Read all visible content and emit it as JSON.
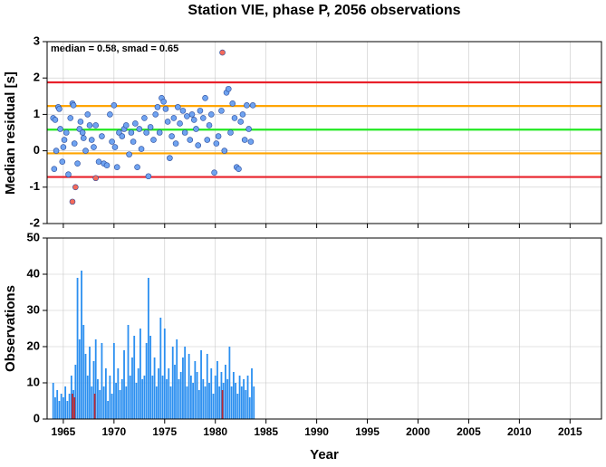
{
  "chart_data": [
    {
      "type": "scatter",
      "title": "Station VIE, phase P, 2056 observations",
      "ylabel": "Median residual [s]",
      "annotation": "median = 0.58, smad = 0.65",
      "xlim": [
        1963.4,
        2018.1
      ],
      "ylim": [
        -2,
        3
      ],
      "yticks": [
        -2,
        -1,
        0,
        1,
        2,
        3
      ],
      "xticks": [
        1965,
        1970,
        1975,
        1980,
        1985,
        1990,
        1995,
        2000,
        2005,
        2010,
        2015
      ],
      "grid": true,
      "hlines": [
        {
          "value": 1.88,
          "color": "#e8202a"
        },
        {
          "value": -0.72,
          "color": "#e8202a"
        },
        {
          "value": 1.23,
          "color": "#ffa500"
        },
        {
          "value": -0.07,
          "color": "#ffa500"
        },
        {
          "value": 0.58,
          "color": "#22e822"
        }
      ],
      "series": [
        {
          "color": "#6fa3f0",
          "x": [
            1964.0,
            1964.2,
            1964.1,
            1964.3,
            1964.5,
            1964.6,
            1964.7,
            1964.9,
            1965.0,
            1965.1,
            1965.3,
            1965.5,
            1965.7,
            1965.9,
            1966.0,
            1966.1,
            1966.4,
            1966.6,
            1966.7,
            1966.9,
            1967.0,
            1967.2,
            1967.4,
            1967.6,
            1967.8,
            1968.0,
            1968.2,
            1968.5,
            1968.8,
            1969.0,
            1969.3,
            1969.6,
            1969.8,
            1970.0,
            1970.1,
            1970.3,
            1970.5,
            1970.8,
            1971.0,
            1971.2,
            1971.5,
            1971.7,
            1971.9,
            1972.1,
            1972.3,
            1972.5,
            1972.7,
            1973.0,
            1973.2,
            1973.4,
            1973.6,
            1973.9,
            1974.1,
            1974.3,
            1974.5,
            1974.7,
            1974.9,
            1975.1,
            1975.3,
            1975.5,
            1975.7,
            1975.9,
            1976.1,
            1976.3,
            1976.5,
            1976.8,
            1977.0,
            1977.2,
            1977.5,
            1977.7,
            1977.9,
            1978.1,
            1978.3,
            1978.5,
            1978.8,
            1979.0,
            1979.2,
            1979.4,
            1979.6,
            1979.9,
            1980.1,
            1980.3,
            1980.6,
            1980.9,
            1981.1,
            1981.3,
            1981.5,
            1981.7,
            1981.9,
            1982.1,
            1982.3,
            1982.5,
            1982.7,
            1982.9,
            1983.1,
            1983.3,
            1983.5,
            1983.7
          ],
          "values": [
            0.9,
            0.85,
            -0.5,
            0.0,
            1.2,
            1.15,
            0.6,
            -0.3,
            0.1,
            0.3,
            0.5,
            -0.65,
            0.9,
            1.3,
            1.25,
            0.2,
            -0.35,
            0.6,
            0.8,
            0.5,
            0.35,
            0.0,
            1.0,
            0.7,
            0.3,
            0.1,
            0.7,
            -0.3,
            0.4,
            -0.35,
            -0.4,
            1.0,
            0.25,
            1.25,
            0.1,
            -0.45,
            0.5,
            0.4,
            0.6,
            0.7,
            -0.1,
            0.5,
            0.25,
            0.75,
            -0.45,
            0.6,
            0.05,
            0.9,
            0.5,
            -0.7,
            0.65,
            0.3,
            1.0,
            1.2,
            0.5,
            1.45,
            1.35,
            1.15,
            0.8,
            -0.2,
            0.4,
            0.9,
            0.2,
            1.2,
            0.75,
            1.1,
            0.5,
            0.95,
            0.3,
            1.0,
            0.85,
            0.6,
            0.15,
            1.1,
            0.9,
            1.45,
            0.3,
            0.7,
            1.0,
            -0.6,
            0.2,
            0.4,
            1.1,
            0.0,
            1.6,
            1.7,
            0.5,
            1.3,
            0.9,
            -0.45,
            -0.5,
            0.8,
            1.0,
            0.3,
            1.25,
            0.6,
            0.25,
            1.25
          ]
        },
        {
          "color": "#f46a5a",
          "x": [
            1965.9,
            1966.2,
            1968.2,
            1980.7
          ],
          "values": [
            -1.4,
            -1.0,
            -0.75,
            2.7
          ]
        }
      ]
    },
    {
      "type": "bar",
      "ylabel": "Observations",
      "xlabel": "Year",
      "xlim": [
        1963.4,
        2018.1
      ],
      "ylim": [
        0,
        50
      ],
      "yticks": [
        0,
        10,
        20,
        30,
        40,
        50
      ],
      "xticks": [
        1965,
        1970,
        1975,
        1980,
        1985,
        1990,
        1995,
        2000,
        2005,
        2010,
        2015
      ],
      "grid": true,
      "series": [
        {
          "color": "#2b8ff0",
          "x": [
            1964.0,
            1964.2,
            1964.4,
            1964.6,
            1964.8,
            1965.0,
            1965.2,
            1965.4,
            1965.6,
            1965.8,
            1966.0,
            1966.2,
            1966.4,
            1966.6,
            1966.8,
            1967.0,
            1967.2,
            1967.4,
            1967.6,
            1967.8,
            1968.0,
            1968.2,
            1968.4,
            1968.6,
            1968.8,
            1969.0,
            1969.2,
            1969.4,
            1969.6,
            1969.8,
            1970.0,
            1970.2,
            1970.4,
            1970.6,
            1970.8,
            1971.0,
            1971.2,
            1971.4,
            1971.6,
            1971.8,
            1972.0,
            1972.2,
            1972.4,
            1972.6,
            1972.8,
            1973.0,
            1973.2,
            1973.4,
            1973.6,
            1973.8,
            1974.0,
            1974.2,
            1974.4,
            1974.6,
            1974.8,
            1975.0,
            1975.2,
            1975.4,
            1975.6,
            1975.8,
            1976.0,
            1976.2,
            1976.4,
            1976.6,
            1976.8,
            1977.0,
            1977.2,
            1977.4,
            1977.6,
            1977.8,
            1978.0,
            1978.2,
            1978.4,
            1978.6,
            1978.8,
            1979.0,
            1979.2,
            1979.4,
            1979.6,
            1979.8,
            1980.0,
            1980.2,
            1980.4,
            1980.6,
            1980.8,
            1981.0,
            1981.2,
            1981.4,
            1981.6,
            1981.8,
            1982.0,
            1982.2,
            1982.4,
            1982.6,
            1982.8,
            1983.0,
            1983.2,
            1983.4,
            1983.6,
            1983.8
          ],
          "values": [
            10,
            6,
            8,
            5,
            7,
            6,
            9,
            5,
            7,
            12,
            8,
            15,
            39,
            22,
            41,
            26,
            18,
            12,
            20,
            9,
            16,
            22,
            11,
            8,
            21,
            9,
            14,
            5,
            12,
            7,
            21,
            10,
            14,
            8,
            11,
            19,
            9,
            26,
            12,
            17,
            23,
            10,
            14,
            25,
            11,
            12,
            21,
            39,
            23,
            12,
            17,
            9,
            14,
            28,
            12,
            25,
            11,
            14,
            9,
            20,
            15,
            22,
            11,
            13,
            17,
            20,
            9,
            18,
            12,
            10,
            16,
            13,
            8,
            19,
            11,
            9,
            18,
            10,
            14,
            7,
            12,
            16,
            9,
            13,
            10,
            15,
            11,
            20,
            9,
            13,
            10,
            7,
            12,
            9,
            11,
            8,
            12,
            6,
            14,
            9
          ]
        },
        {
          "color": "#c0282e",
          "x": [
            1965.9,
            1966.1,
            1968.1,
            1980.7
          ],
          "values": [
            7,
            6,
            7,
            8
          ]
        }
      ]
    }
  ]
}
